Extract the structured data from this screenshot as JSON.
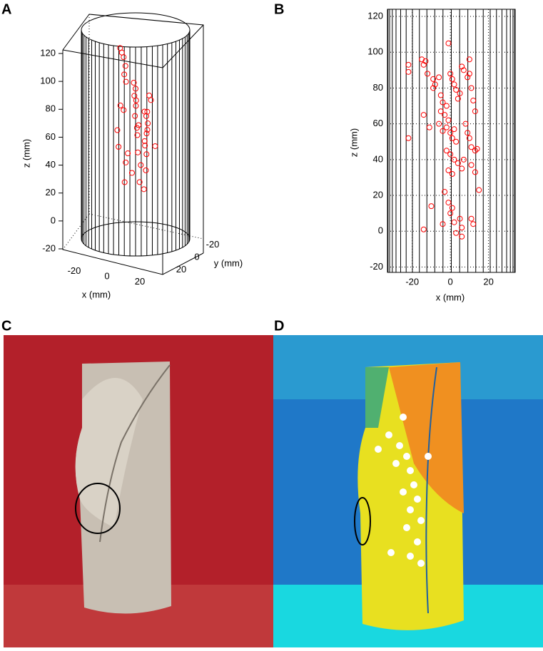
{
  "panels": [
    "A",
    "B",
    "C",
    "D"
  ],
  "chart_data": [
    {
      "type": "scatter3d",
      "xlabel": "x (mm)",
      "ylabel": "y (mm)",
      "zlabel": "z (mm)",
      "xlim": [
        -30,
        30
      ],
      "ylim": [
        -30,
        30
      ],
      "zlim": [
        -20,
        120
      ],
      "xticks": [
        -20,
        0,
        20
      ],
      "yticks": [
        -20,
        0,
        20
      ],
      "zticks": [
        -20,
        0,
        20,
        40,
        60,
        80,
        100,
        120
      ],
      "color": "#ff0000",
      "x": [
        -14,
        -12,
        -10,
        -8,
        -6,
        -4,
        -2,
        0,
        2,
        4,
        6,
        8,
        10,
        12,
        -5,
        -3,
        1,
        3,
        5,
        7,
        9,
        -7,
        -1,
        2,
        4,
        6,
        8,
        11,
        -9,
        -2,
        0,
        3,
        5,
        -6,
        1,
        4,
        -3,
        2,
        6,
        -12
      ],
      "y": [
        -10,
        -8,
        -6,
        -4,
        2,
        4,
        -2,
        0,
        6,
        8,
        -5,
        -3,
        10,
        12,
        5,
        -7,
        3,
        -9,
        7,
        -1,
        4,
        9,
        -4,
        2,
        -6,
        1,
        5,
        -2,
        3,
        6,
        -3,
        -8,
        4,
        0,
        7,
        -5,
        8,
        -1,
        2,
        -6
      ],
      "z": [
        104,
        102,
        100,
        95,
        92,
        88,
        85,
        82,
        80,
        78,
        76,
        74,
        72,
        70,
        68,
        66,
        64,
        62,
        60,
        58,
        56,
        55,
        52,
        50,
        48,
        46,
        45,
        42,
        40,
        38,
        35,
        32,
        30,
        28,
        25,
        22,
        18,
        15,
        12,
        65
      ]
    },
    {
      "type": "scatter",
      "xlabel": "x (mm)",
      "ylabel": "z (mm)",
      "xlim": [
        -33,
        34
      ],
      "ylim": [
        -23,
        124
      ],
      "xticks": [
        -20,
        0,
        20
      ],
      "yticks": [
        -20,
        0,
        20,
        40,
        60,
        80,
        100,
        120
      ],
      "grid": true,
      "color": "#ff0000",
      "x": [
        -22,
        -22,
        -15,
        -14,
        -13,
        -12,
        -9,
        -8,
        -9,
        -6,
        -5,
        -4,
        -5,
        -3,
        -2,
        -1,
        -1,
        0,
        1,
        2,
        3,
        4,
        5,
        6,
        7,
        9,
        10,
        10,
        11,
        12,
        13,
        -2,
        0,
        1,
        2,
        3,
        -4,
        -6,
        8,
        9,
        10,
        11,
        13,
        14,
        -22,
        -14,
        -11,
        -2,
        0,
        2,
        4,
        6,
        -1,
        1,
        7,
        11,
        13,
        15,
        -3,
        -1,
        1,
        0,
        2,
        5,
        6,
        11,
        12,
        -10,
        -14,
        -4,
        3,
        6
      ],
      "y": [
        93,
        89,
        96,
        93,
        95,
        88,
        85,
        82,
        80,
        86,
        76,
        72,
        67,
        65,
        70,
        62,
        105,
        88,
        85,
        82,
        79,
        74,
        77,
        92,
        90,
        86,
        96,
        88,
        80,
        73,
        67,
        58,
        55,
        52,
        57,
        50,
        56,
        60,
        60,
        55,
        52,
        47,
        45,
        46,
        52,
        65,
        58,
        45,
        43,
        40,
        38,
        35,
        34,
        32,
        40,
        37,
        33,
        23,
        22,
        16,
        13,
        10,
        5,
        7,
        2,
        7,
        4,
        14,
        1,
        4,
        -1,
        -3
      ]
    }
  ]
}
